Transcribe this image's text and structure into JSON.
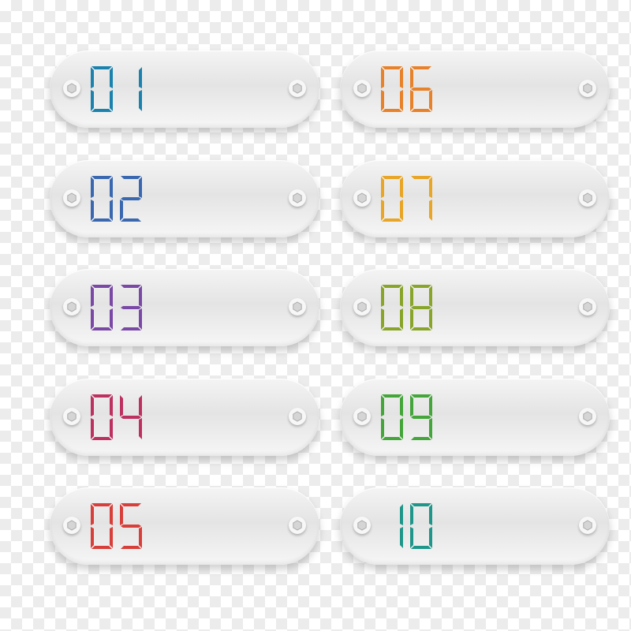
{
  "badges": [
    {
      "number": "01",
      "color": "#1a82ad"
    },
    {
      "number": "02",
      "color": "#3a68b0"
    },
    {
      "number": "03",
      "color": "#7a49a6"
    },
    {
      "number": "04",
      "color": "#bd3160"
    },
    {
      "number": "05",
      "color": "#d83f3a"
    },
    {
      "number": "06",
      "color": "#e7812a"
    },
    {
      "number": "07",
      "color": "#e8a526"
    },
    {
      "number": "08",
      "color": "#88a52a"
    },
    {
      "number": "09",
      "color": "#44a53a"
    },
    {
      "number": "10",
      "color": "#1f968a"
    }
  ],
  "icons": {
    "screw": "hex-screw-icon"
  }
}
